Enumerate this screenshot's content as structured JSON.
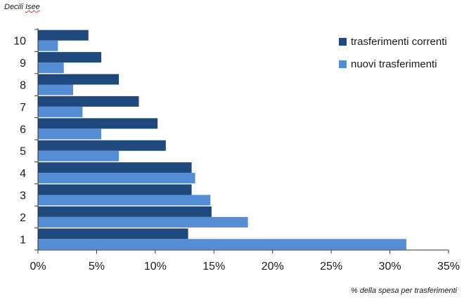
{
  "chart_data": {
    "type": "bar",
    "orientation": "horizontal",
    "title": "",
    "ylabel": "Decili Isee",
    "ylabel_emphasis": "Isee",
    "ylabel_prefix": "Decili ",
    "xlabel": "% della spesa per trasferimenti",
    "categories": [
      "1",
      "2",
      "3",
      "4",
      "5",
      "6",
      "7",
      "8",
      "9",
      "10"
    ],
    "series": [
      {
        "name": "trasferimenti correnti",
        "color": "#1f497d",
        "values": [
          12.8,
          14.8,
          13.1,
          13.1,
          10.9,
          10.2,
          8.6,
          6.9,
          5.4,
          4.3
        ]
      },
      {
        "name": "nuovi trasferimenti",
        "color": "#548dd4",
        "values": [
          31.4,
          17.9,
          14.7,
          13.4,
          6.9,
          5.4,
          3.8,
          3.0,
          2.2,
          1.7
        ]
      }
    ],
    "xlim": [
      0,
      35
    ],
    "xticks": [
      "0%",
      "5%",
      "10%",
      "15%",
      "20%",
      "25%",
      "30%",
      "35%"
    ],
    "grid": false,
    "legend": "top-right"
  }
}
